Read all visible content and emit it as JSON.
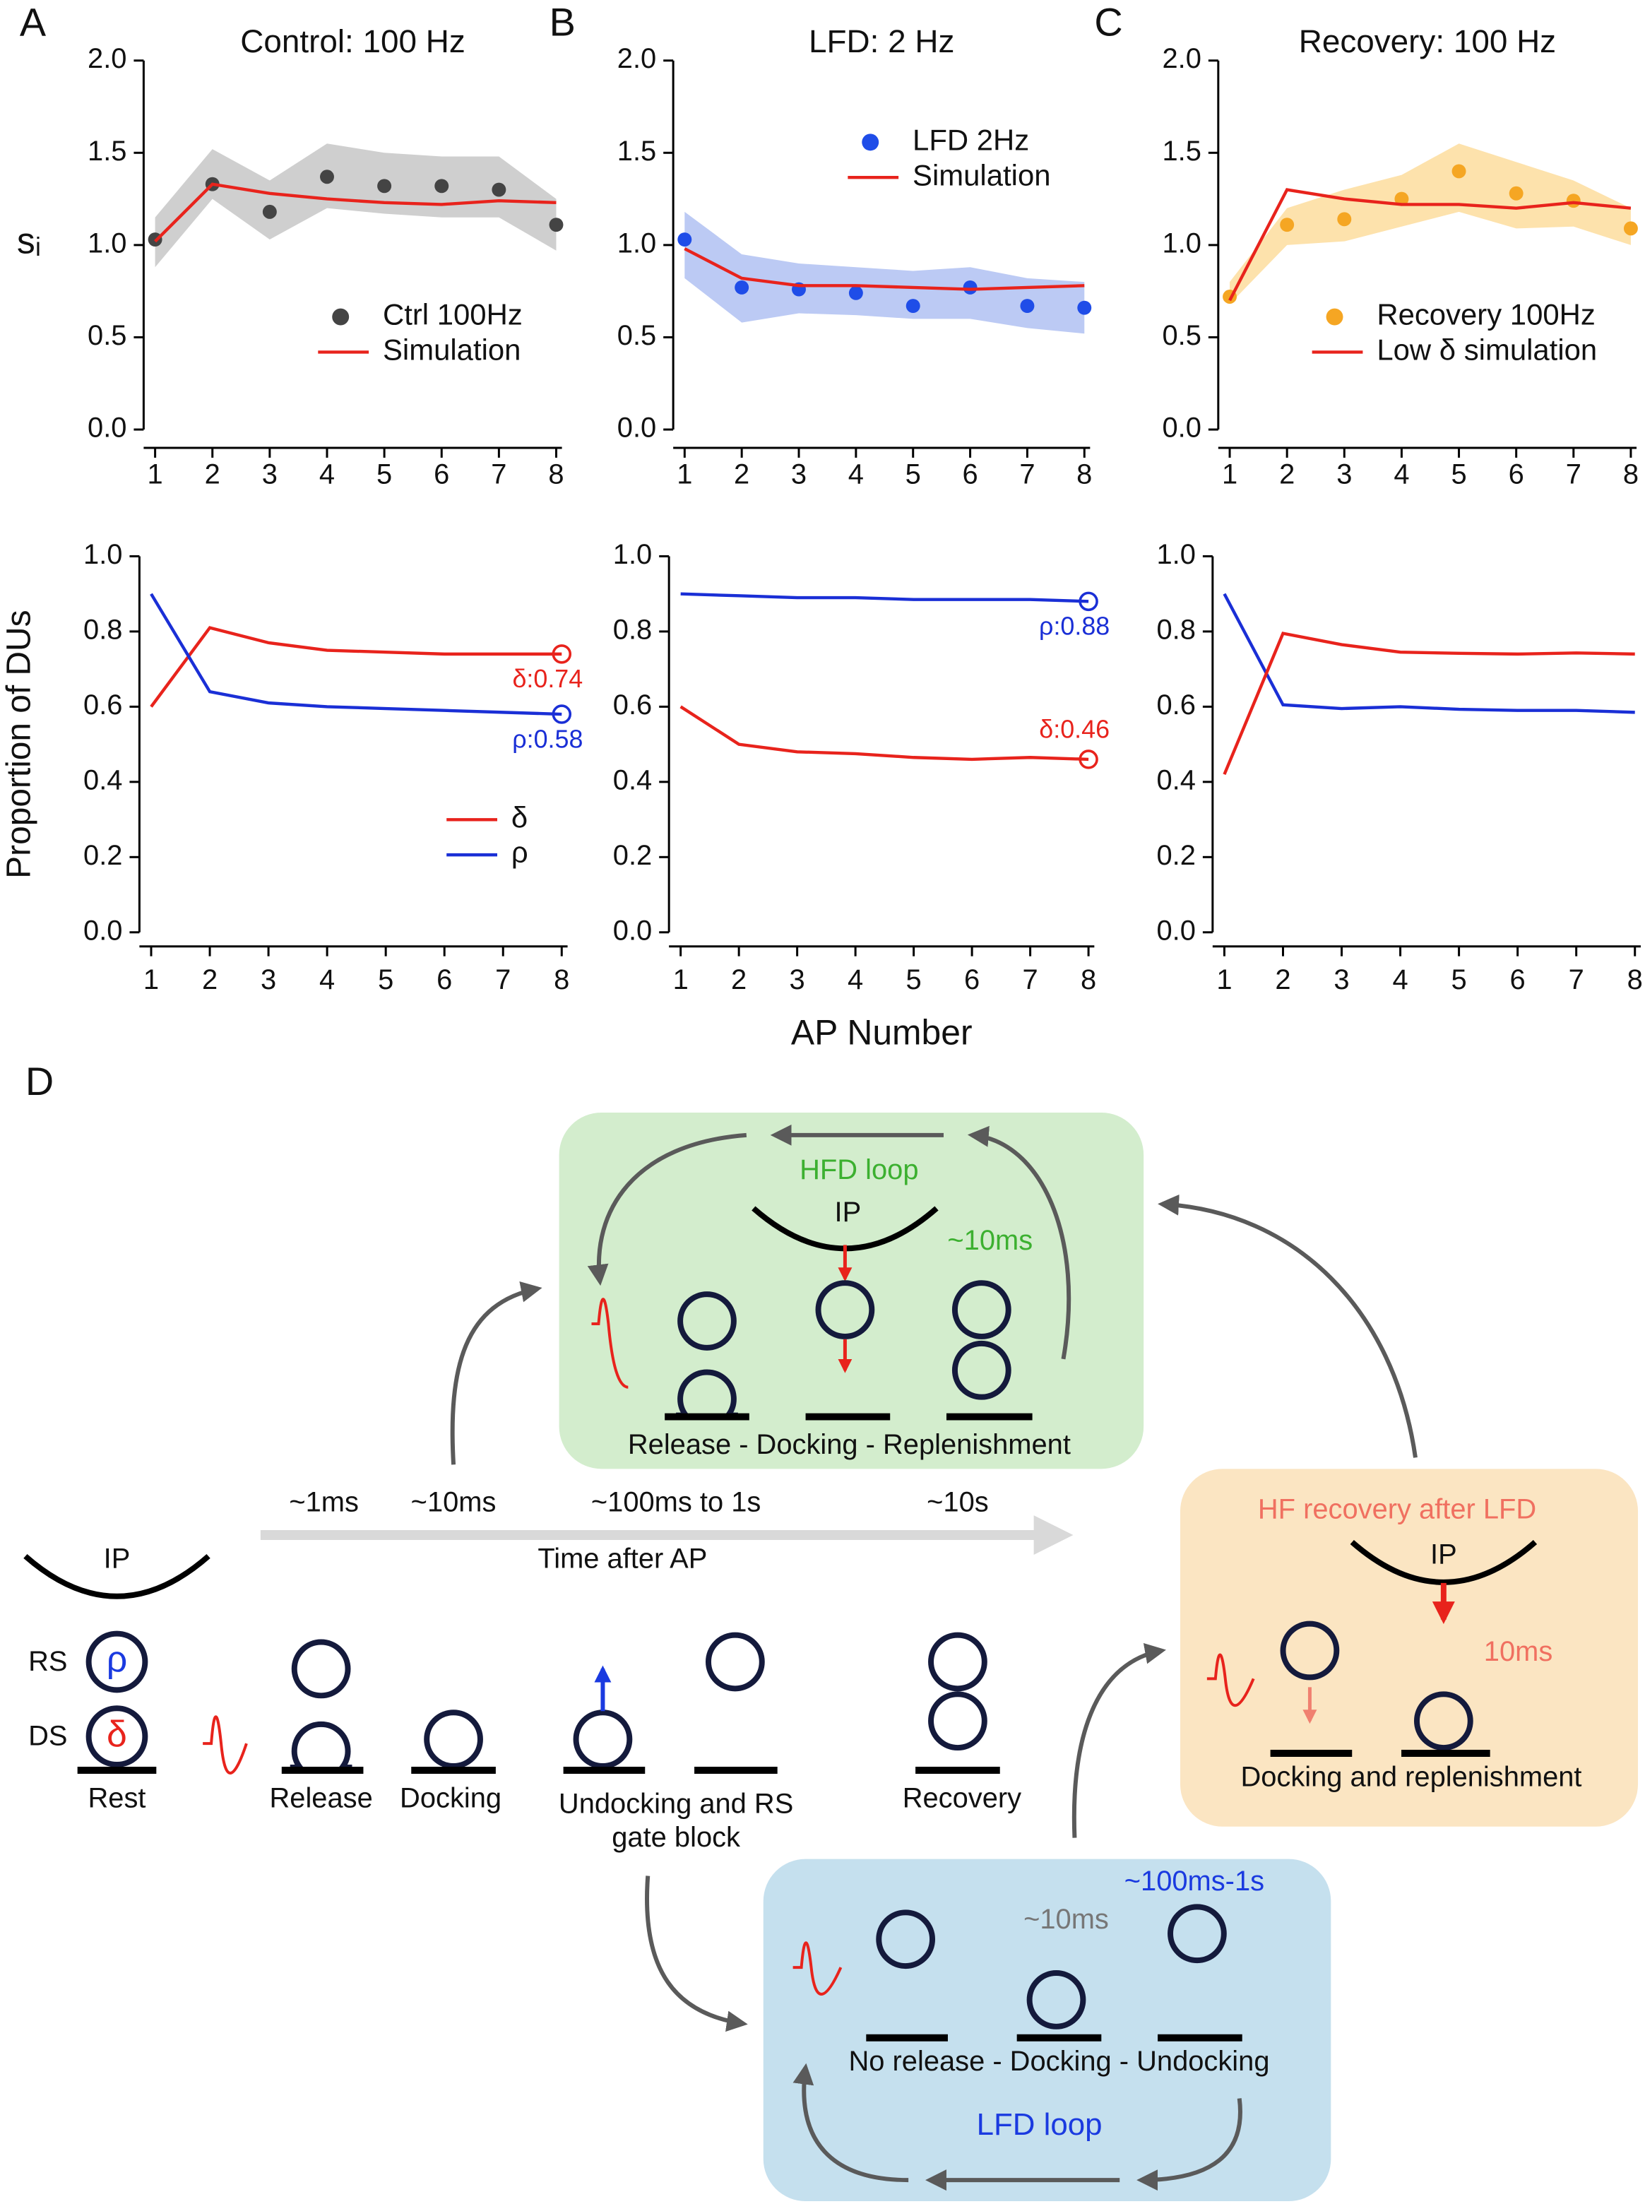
{
  "chart_data": [
    {
      "type": "line",
      "panel": "A",
      "title": "Control: 100 Hz",
      "y_label": "sᵢ",
      "x": [
        1,
        2,
        3,
        4,
        5,
        6,
        7,
        8
      ],
      "xlim": [
        0.8,
        8.1
      ],
      "xticks": [
        1,
        2,
        3,
        4,
        5,
        6,
        7,
        8
      ],
      "ylim": [
        0,
        2
      ],
      "yticks": [
        {
          "value": 0,
          "label": "0.0"
        },
        {
          "value": 0.5,
          "label": "0.5"
        },
        {
          "value": 1,
          "label": "1.0"
        },
        {
          "value": 1.5,
          "label": "1.5"
        },
        {
          "value": 2,
          "label": "2.0"
        }
      ],
      "legend": "lower right",
      "series": [
        {
          "name": "Ctrl 100Hz",
          "mode": "markers",
          "color": "#444444",
          "values": [
            1.03,
            1.33,
            1.18,
            1.37,
            1.32,
            1.32,
            1.3,
            1.11
          ],
          "band_lower": [
            0.88,
            1.25,
            1.03,
            1.2,
            1.17,
            1.15,
            1.15,
            0.97
          ],
          "band_upper": [
            1.15,
            1.52,
            1.35,
            1.55,
            1.5,
            1.48,
            1.48,
            1.25
          ],
          "band_color": "#cfcfcf"
        },
        {
          "name": "Simulation",
          "mode": "line",
          "color": "#e8231c",
          "values": [
            1.02,
            1.33,
            1.28,
            1.25,
            1.23,
            1.22,
            1.24,
            1.23
          ]
        }
      ]
    },
    {
      "type": "line",
      "panel": "B",
      "title": "LFD: 2 Hz",
      "x": [
        1,
        2,
        3,
        4,
        5,
        6,
        7,
        8
      ],
      "xlim": [
        0.8,
        8.1
      ],
      "xticks": [
        1,
        2,
        3,
        4,
        5,
        6,
        7,
        8
      ],
      "ylim": [
        0,
        2
      ],
      "yticks": [
        {
          "value": 0,
          "label": "0.0"
        },
        {
          "value": 0.5,
          "label": "0.5"
        },
        {
          "value": 1,
          "label": "1.0"
        },
        {
          "value": 1.5,
          "label": "1.5"
        },
        {
          "value": 2,
          "label": "2.0"
        }
      ],
      "legend": "upper right",
      "series": [
        {
          "name": "LFD 2Hz",
          "mode": "markers",
          "color": "#1f4de8",
          "values": [
            1.03,
            0.77,
            0.76,
            0.74,
            0.67,
            0.77,
            0.67,
            0.66
          ],
          "band_lower": [
            0.82,
            0.58,
            0.63,
            0.62,
            0.6,
            0.6,
            0.55,
            0.52
          ],
          "band_upper": [
            1.18,
            0.95,
            0.9,
            0.88,
            0.86,
            0.88,
            0.82,
            0.8
          ],
          "band_color": "#bccaf4"
        },
        {
          "name": "Simulation",
          "mode": "line",
          "color": "#e8231c",
          "values": [
            0.98,
            0.82,
            0.78,
            0.78,
            0.77,
            0.76,
            0.77,
            0.78
          ]
        }
      ]
    },
    {
      "type": "line",
      "panel": "C",
      "title": "Recovery: 100 Hz",
      "x": [
        1,
        2,
        3,
        4,
        5,
        6,
        7,
        8
      ],
      "xlim": [
        0.8,
        8.1
      ],
      "xticks": [
        1,
        2,
        3,
        4,
        5,
        6,
        7,
        8
      ],
      "ylim": [
        0,
        2
      ],
      "yticks": [
        {
          "value": 0,
          "label": "0.0"
        },
        {
          "value": 0.5,
          "label": "0.5"
        },
        {
          "value": 1,
          "label": "1.0"
        },
        {
          "value": 1.5,
          "label": "1.5"
        },
        {
          "value": 2,
          "label": "2.0"
        }
      ],
      "legend": "lower right",
      "series": [
        {
          "name": "Recovery 100Hz",
          "mode": "markers",
          "color": "#f5a623",
          "values": [
            0.72,
            1.11,
            1.14,
            1.25,
            1.4,
            1.28,
            1.24,
            1.09
          ],
          "band_lower": [
            0.68,
            1.0,
            1.02,
            1.1,
            1.18,
            1.09,
            1.1,
            1.0
          ],
          "band_upper": [
            0.8,
            1.2,
            1.3,
            1.38,
            1.55,
            1.45,
            1.35,
            1.2
          ],
          "band_color": "#fde2ac"
        },
        {
          "name": "Low δ simulation",
          "mode": "line",
          "color": "#e8231c",
          "values": [
            0.7,
            1.3,
            1.25,
            1.22,
            1.22,
            1.2,
            1.23,
            1.2
          ]
        }
      ]
    },
    {
      "type": "line",
      "y_label": "Proportion of DUs",
      "x": [
        1,
        2,
        3,
        4,
        5,
        6,
        7,
        8
      ],
      "xlim": [
        0.8,
        8.1
      ],
      "xticks": [
        1,
        2,
        3,
        4,
        5,
        6,
        7,
        8
      ],
      "ylim": [
        0,
        1
      ],
      "yticks": [
        {
          "value": 0,
          "label": "0.0"
        },
        0.2,
        0.4,
        0.6,
        0.8,
        {
          "value": 1,
          "label": "1.0"
        }
      ],
      "legend": "lower right",
      "series": [
        {
          "name": "δ",
          "mode": "line",
          "color": "#e8231c",
          "values": [
            0.6,
            0.81,
            0.77,
            0.75,
            0.745,
            0.74,
            0.74,
            0.74
          ],
          "value_labels": [
            null,
            null,
            null,
            null,
            null,
            null,
            null,
            "δ:0.74"
          ],
          "label_position": "below"
        },
        {
          "name": "ρ",
          "mode": "line",
          "color": "#1a2fd6",
          "values": [
            0.9,
            0.64,
            0.61,
            0.6,
            0.595,
            0.59,
            0.585,
            0.58
          ],
          "value_labels": [
            null,
            null,
            null,
            null,
            null,
            null,
            null,
            "ρ:0.58"
          ],
          "label_position": "below"
        }
      ]
    },
    {
      "type": "line",
      "x_label": "AP Number",
      "x": [
        1,
        2,
        3,
        4,
        5,
        6,
        7,
        8
      ],
      "xlim": [
        0.8,
        8.1
      ],
      "xticks": [
        1,
        2,
        3,
        4,
        5,
        6,
        7,
        8
      ],
      "ylim": [
        0,
        1
      ],
      "yticks": [
        {
          "value": 0,
          "label": "0.0"
        },
        0.2,
        0.4,
        0.6,
        0.8,
        {
          "value": 1,
          "label": "1.0"
        }
      ],
      "series": [
        {
          "mode": "line",
          "color": "#1a2fd6",
          "values": [
            0.9,
            0.895,
            0.89,
            0.89,
            0.885,
            0.885,
            0.885,
            0.88
          ],
          "value_labels": [
            null,
            null,
            null,
            null,
            null,
            null,
            null,
            "ρ:0.88"
          ],
          "label_position": "below"
        },
        {
          "mode": "line",
          "color": "#e8231c",
          "values": [
            0.6,
            0.5,
            0.48,
            0.475,
            0.465,
            0.46,
            0.465,
            0.46
          ],
          "value_labels": [
            null,
            null,
            null,
            null,
            null,
            null,
            null,
            "δ:0.46"
          ],
          "label_position": "above"
        }
      ]
    },
    {
      "type": "line",
      "x": [
        1,
        2,
        3,
        4,
        5,
        6,
        7,
        8
      ],
      "xlim": [
        0.8,
        8.1
      ],
      "xticks": [
        1,
        2,
        3,
        4,
        5,
        6,
        7,
        8
      ],
      "ylim": [
        0,
        1
      ],
      "yticks": [
        {
          "value": 0,
          "label": "0.0"
        },
        0.2,
        0.4,
        0.6,
        0.8,
        {
          "value": 1,
          "label": "1.0"
        }
      ],
      "series": [
        {
          "mode": "line",
          "color": "#1a2fd6",
          "values": [
            0.9,
            0.605,
            0.595,
            0.6,
            0.593,
            0.59,
            0.59,
            0.585
          ]
        },
        {
          "mode": "line",
          "color": "#e8231c",
          "values": [
            0.42,
            0.795,
            0.765,
            0.745,
            0.742,
            0.74,
            0.743,
            0.74
          ]
        }
      ]
    }
  ],
  "diagram": {
    "panel": "D",
    "hfd_loop": {
      "title": "HFD loop",
      "ip": "IP",
      "time": "~10ms",
      "caption": "Release - Docking - Replenishment"
    },
    "timeline": {
      "marks": [
        "~1ms",
        "~10ms",
        "~100ms to 1s",
        "~10s"
      ],
      "label": "Time after AP"
    },
    "states": {
      "ip": "IP",
      "rs": "RS",
      "ds": "DS",
      "rho": "ρ",
      "delta": "δ",
      "labels": [
        "Rest",
        "Release",
        "Docking",
        "Undocking and RS",
        "gate block",
        "Recovery"
      ]
    },
    "hf_recovery": {
      "title": "HF recovery after LFD",
      "ip": "IP",
      "time": "10ms",
      "caption": "Docking and replenishment"
    },
    "lfd_loop": {
      "time_long": "~100ms-1s",
      "time_short": "~10ms",
      "caption": "No release - Docking - Undocking",
      "title": "LFD loop"
    }
  }
}
